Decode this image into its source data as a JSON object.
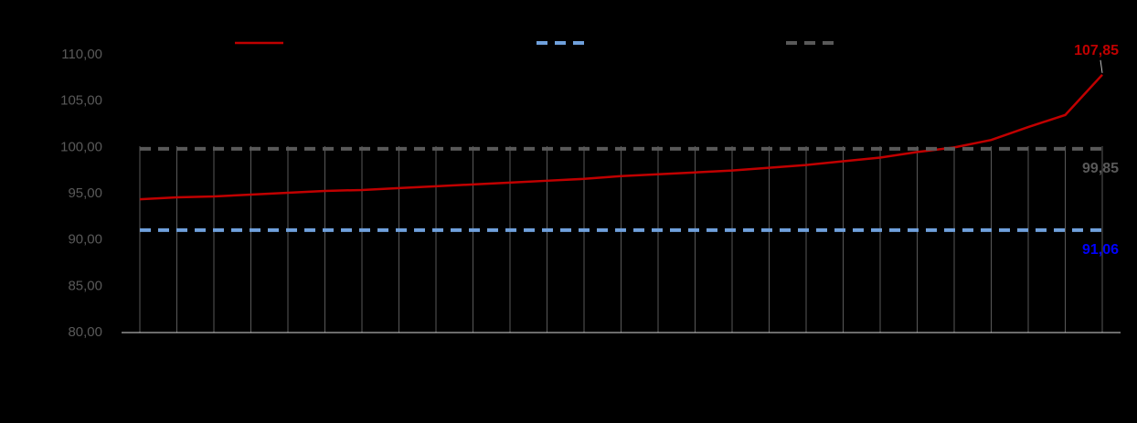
{
  "chart_data": {
    "type": "line",
    "categories": [
      null,
      null,
      null,
      null,
      null,
      null,
      null,
      null,
      null,
      null,
      null,
      null,
      null,
      null,
      null,
      null,
      null,
      null,
      null,
      null,
      null,
      null,
      null,
      null,
      null,
      null,
      null
    ],
    "series": [
      {
        "color": "#c00000",
        "dash": false,
        "label_color": "#c00000",
        "values": [
          94.4,
          94.6,
          94.7,
          94.9,
          95.1,
          95.3,
          95.4,
          95.6,
          95.8,
          96.0,
          96.2,
          96.4,
          96.6,
          96.9,
          97.1,
          97.3,
          97.5,
          97.8,
          98.1,
          98.5,
          98.9,
          99.5,
          100.0,
          100.8,
          102.2,
          103.5,
          107.85
        ],
        "value_labels": [
          null,
          null,
          null,
          null,
          null,
          null,
          null,
          null,
          null,
          null,
          null,
          null,
          null,
          null,
          null,
          null,
          null,
          null,
          null,
          null,
          null,
          null,
          null,
          null,
          null,
          null,
          "107,85"
        ]
      },
      {
        "color": "#6fa0dc",
        "dash": true,
        "label_color": "#0000ff",
        "values": [
          91.06,
          91.06,
          91.06,
          91.06,
          91.06,
          91.06,
          91.06,
          91.06,
          91.06,
          91.06,
          91.06,
          91.06,
          91.06,
          91.06,
          91.06,
          91.06,
          91.06,
          91.06,
          91.06,
          91.06,
          91.06,
          91.06,
          91.06,
          91.06,
          91.06,
          91.06,
          91.06
        ],
        "value_labels": [
          null,
          null,
          null,
          null,
          null,
          null,
          null,
          null,
          null,
          null,
          null,
          null,
          null,
          null,
          null,
          null,
          null,
          null,
          null,
          null,
          null,
          null,
          null,
          null,
          null,
          null,
          "91,06"
        ]
      },
      {
        "color": "#595959",
        "dash": true,
        "label_color": "#595959",
        "values": [
          99.85,
          99.85,
          99.85,
          99.85,
          99.85,
          99.85,
          99.85,
          99.85,
          99.85,
          99.85,
          99.85,
          99.85,
          99.85,
          99.85,
          99.85,
          99.85,
          99.85,
          99.85,
          99.85,
          99.85,
          99.85,
          99.85,
          99.85,
          99.85,
          99.85,
          99.85,
          99.85
        ],
        "value_labels": [
          null,
          null,
          null,
          null,
          null,
          null,
          null,
          null,
          null,
          null,
          null,
          null,
          null,
          null,
          null,
          null,
          null,
          null,
          null,
          null,
          null,
          null,
          null,
          null,
          null,
          null,
          "99,85"
        ]
      }
    ],
    "ylim": [
      80,
      110
    ],
    "yticks": [
      {
        "value": 80,
        "label": "80,00"
      },
      {
        "value": 85,
        "label": "85,00"
      },
      {
        "value": 90,
        "label": "90,00"
      },
      {
        "value": 95,
        "label": "95,00"
      },
      {
        "value": 100,
        "label": "100,00"
      },
      {
        "value": 105,
        "label": "105,00"
      },
      {
        "value": 110,
        "label": "110,00"
      }
    ],
    "legend": "top"
  }
}
